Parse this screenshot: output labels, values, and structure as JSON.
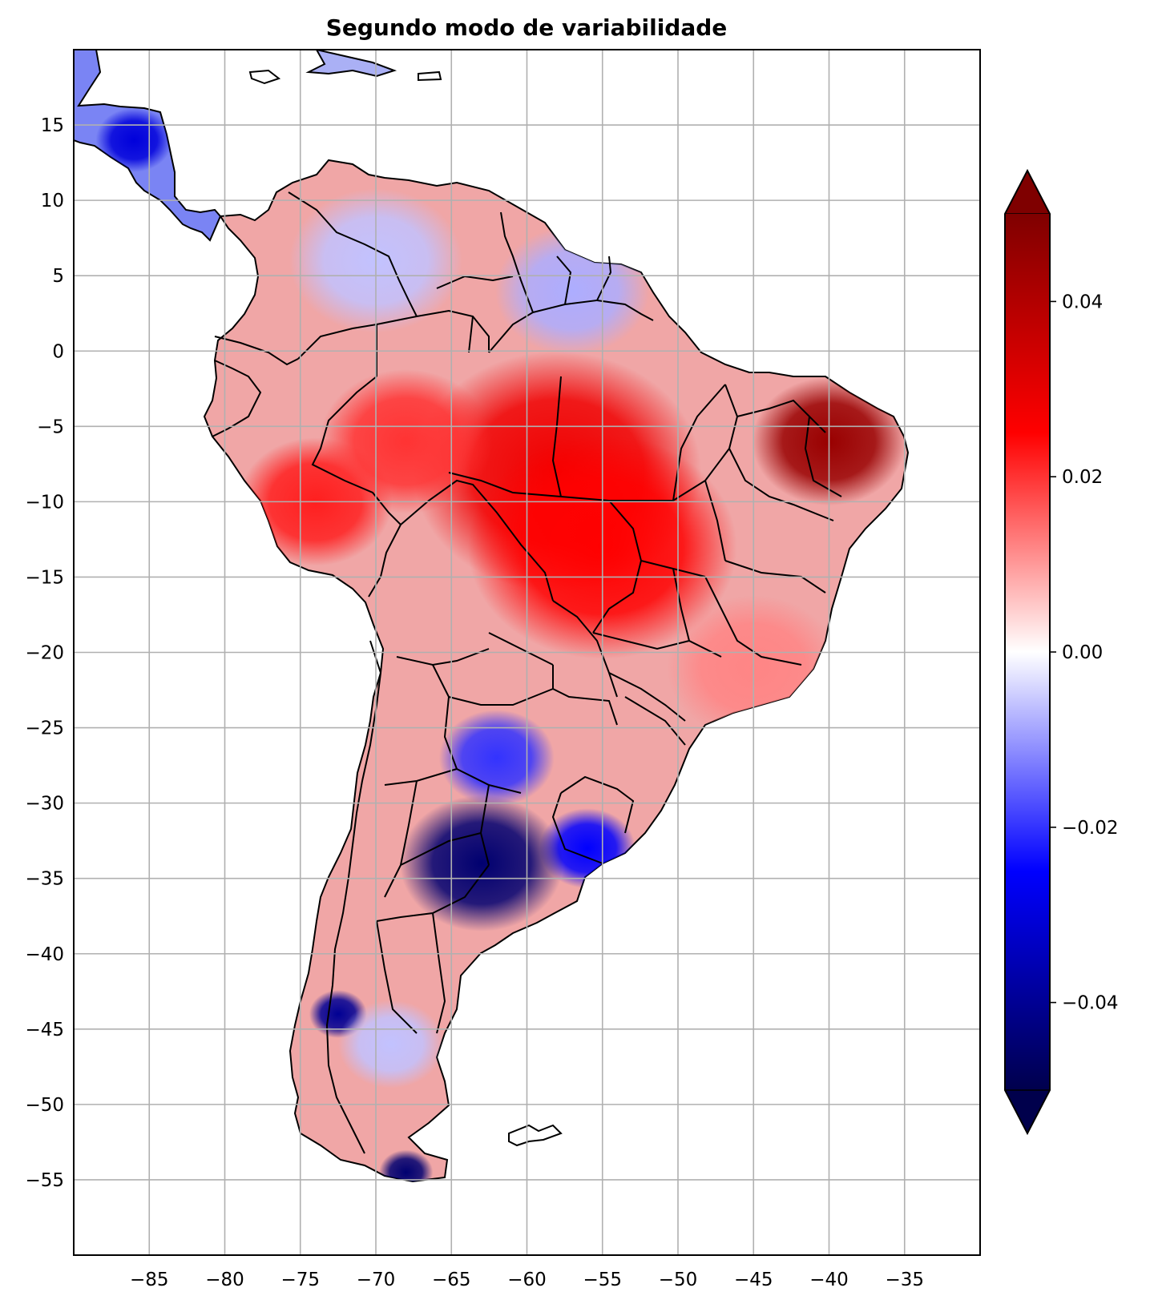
{
  "title": "Segundo modo de variabilidade",
  "map": {
    "lon_range": [
      -90,
      -30
    ],
    "lat_range": [
      -60,
      20
    ],
    "grid": true,
    "x_ticks": [
      -85,
      -80,
      -75,
      -70,
      -65,
      -60,
      -55,
      -50,
      -45,
      -40,
      -35
    ],
    "y_ticks": [
      15,
      10,
      5,
      0,
      -5,
      -10,
      -15,
      -20,
      -25,
      -30,
      -35,
      -40,
      -45,
      -50,
      -55
    ],
    "x_tick_labels": [
      "−85",
      "−80",
      "−75",
      "−70",
      "−65",
      "−60",
      "−55",
      "−50",
      "−45",
      "−40",
      "−35"
    ],
    "y_tick_labels": [
      "15",
      "10",
      "5",
      "0",
      "−5",
      "−10",
      "−15",
      "−20",
      "−25",
      "−30",
      "−35",
      "−40",
      "−45",
      "−50",
      "−55"
    ]
  },
  "colorbar": {
    "colormap": "seismic",
    "range": [
      -0.05,
      0.05
    ],
    "extend": "both",
    "ticks": [
      0.04,
      0.02,
      0.0,
      -0.02,
      -0.04
    ],
    "tick_labels": [
      "0.04",
      "0.02",
      "0.00",
      "−0.02",
      "−0.04"
    ]
  },
  "features": [
    {
      "name": "northeast-brazil",
      "lon": -40,
      "lat": -6,
      "value": 0.045
    },
    {
      "name": "amazon-central",
      "lon": -58,
      "lat": -8,
      "value": 0.028
    },
    {
      "name": "brazil-central",
      "lon": -55,
      "lat": -13,
      "value": 0.025
    },
    {
      "name": "peru-andes",
      "lon": -74,
      "lat": -10,
      "value": 0.022
    },
    {
      "name": "western-amazon",
      "lon": -68,
      "lat": -6,
      "value": 0.02
    },
    {
      "name": "guianas",
      "lon": -57,
      "lat": 4,
      "value": -0.008
    },
    {
      "name": "colombia-venezuela",
      "lon": -70,
      "lat": 6,
      "value": -0.006
    },
    {
      "name": "central-america",
      "lon": -86,
      "lat": 14,
      "value": -0.03
    },
    {
      "name": "uruguay",
      "lon": -56,
      "lat": -33,
      "value": -0.025
    },
    {
      "name": "argentina-pampas",
      "lon": -63,
      "lat": -34,
      "value": -0.045
    },
    {
      "name": "north-argentina",
      "lon": -62,
      "lat": -27,
      "value": -0.02
    },
    {
      "name": "chile-south",
      "lon": -72.5,
      "lat": -44,
      "value": -0.04
    },
    {
      "name": "patagonia",
      "lon": -69,
      "lat": -46,
      "value": -0.006
    },
    {
      "name": "tierra-del-fuego",
      "lon": -68,
      "lat": -54.5,
      "value": -0.045
    },
    {
      "name": "southeast-brazil",
      "lon": -45,
      "lat": -21,
      "value": 0.012
    }
  ]
}
